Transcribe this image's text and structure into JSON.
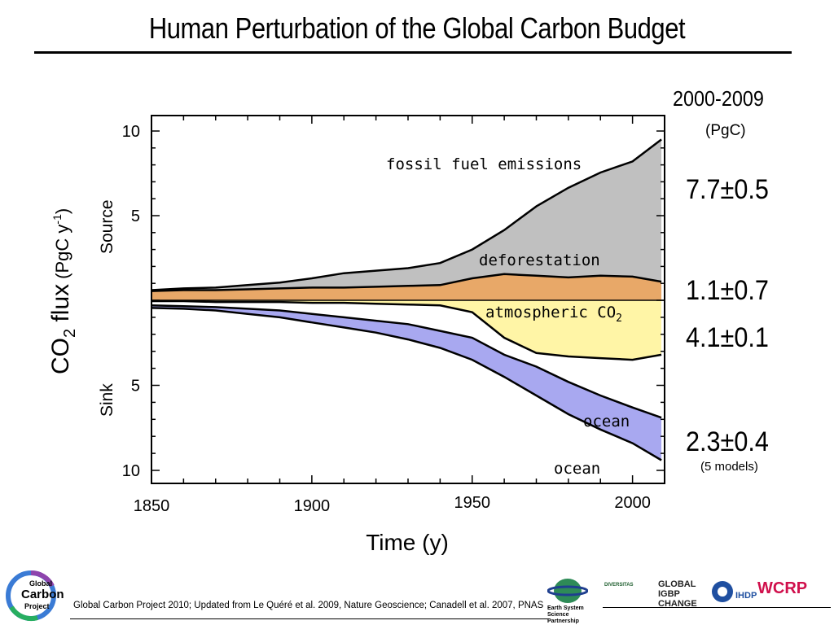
{
  "header": {
    "title": "Human Perturbation of the Global Carbon Budget"
  },
  "chart_data": {
    "type": "area",
    "title": "Human Perturbation of the Global Carbon Budget",
    "xlabel": "Time (y)",
    "ylabel": "CO2 flux (PgC y-1)",
    "ylabel_parts": {
      "main": "CO",
      "sub": "2",
      "rest": " flux",
      "unit": "(PgC y",
      "unit_sup": "-1",
      "unit_end": ")"
    },
    "source_label": "Source",
    "sink_label": "Sink",
    "xlim": [
      1850,
      2010
    ],
    "ylim": [
      -10,
      10
    ],
    "x_ticks": [
      "1850",
      "1900",
      "1950",
      "2000"
    ],
    "y_ticks_source": [
      "10",
      "5"
    ],
    "y_ticks_sink": [
      "5",
      "10"
    ],
    "grid": false,
    "x": [
      1850,
      1860,
      1870,
      1880,
      1890,
      1900,
      1910,
      1920,
      1930,
      1940,
      1950,
      1960,
      1970,
      1980,
      1990,
      2000,
      2009
    ],
    "series": [
      {
        "name": "fossil fuel emissions",
        "color": "#c0c0c0",
        "values": [
          0.05,
          0.1,
          0.15,
          0.25,
          0.35,
          0.55,
          0.85,
          0.95,
          1.05,
          1.3,
          1.7,
          2.6,
          4.1,
          5.3,
          6.1,
          6.8,
          8.4
        ]
      },
      {
        "name": "deforestation",
        "color": "#e8a868",
        "values": [
          0.55,
          0.6,
          0.6,
          0.65,
          0.7,
          0.75,
          0.75,
          0.8,
          0.85,
          0.9,
          1.3,
          1.55,
          1.45,
          1.35,
          1.45,
          1.4,
          1.1
        ]
      },
      {
        "name": "atmospheric CO2",
        "label_main": "atmospheric CO",
        "label_sub": "2",
        "color": "#fff5a6",
        "values": [
          -0.05,
          -0.05,
          -0.1,
          -0.1,
          -0.1,
          -0.15,
          -0.15,
          -0.2,
          -0.25,
          -0.3,
          -0.7,
          -2.2,
          -3.1,
          -3.3,
          -3.4,
          -3.5,
          -3.2
        ]
      },
      {
        "name": "ocean",
        "color": "#a8a8f0",
        "values": [
          -0.3,
          -0.35,
          -0.4,
          -0.5,
          -0.6,
          -0.8,
          -1.0,
          -1.2,
          -1.4,
          -1.8,
          -2.2,
          -3.2,
          -3.9,
          -4.8,
          -5.6,
          -6.3,
          -6.9
        ]
      },
      {
        "name": "ocean",
        "color": "#a8a8f0",
        "values": [
          -0.45,
          -0.5,
          -0.6,
          -0.8,
          -1.0,
          -1.3,
          -1.6,
          -1.9,
          -2.3,
          -2.8,
          -3.5,
          -4.5,
          -5.6,
          -6.7,
          -7.6,
          -8.4,
          -9.4
        ]
      }
    ],
    "annotations": [
      "fossil fuel emissions",
      "deforestation",
      "atmospheric CO2",
      "ocean",
      "ocean"
    ]
  },
  "budget": {
    "period": "2000-2009",
    "unit": "(PgC)",
    "values": [
      "7.7±0.5",
      "1.1±0.7",
      "4.1±0.1",
      "2.3±0.4"
    ],
    "models_note": "(5 models)"
  },
  "footer": {
    "citation": "Global Carbon Project 2010; Updated from Le Quéré et al. 2009, Nature Geoscience; Canadell et al. 2007, PNAS",
    "logo_lines": [
      "Global",
      "Carbon",
      "Project"
    ],
    "partners": [
      "Earth System Science Partnership",
      "DIVERSITAS",
      "GLOBAL IGBP CHANGE",
      "IHDP",
      "WCRP"
    ]
  },
  "colors": {
    "fossil": "#c0c0c0",
    "deforestation": "#e8a868",
    "atmospheric": "#fff5a6",
    "ocean": "#a8a8f0"
  }
}
